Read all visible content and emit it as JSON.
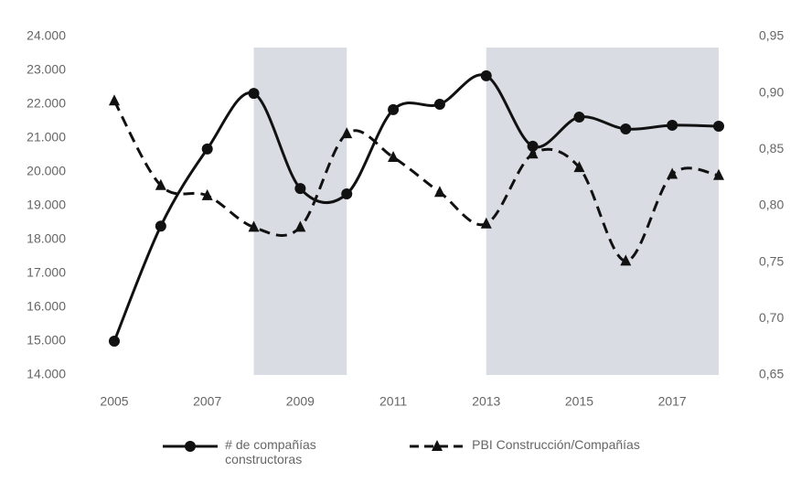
{
  "chart_data": {
    "type": "line",
    "x": [
      2005,
      2006,
      2007,
      2008,
      2009,
      2010,
      2011,
      2012,
      2013,
      2014,
      2015,
      2016,
      2017,
      2018
    ],
    "xlim": [
      2005,
      2018
    ],
    "xticks": [
      2005,
      2007,
      2009,
      2011,
      2013,
      2015,
      2017
    ],
    "ylim": [
      14000,
      24000
    ],
    "yticks": [
      {
        "value": 14000,
        "label": "14.000"
      },
      {
        "value": 15000,
        "label": "15.000"
      },
      {
        "value": 16000,
        "label": "16.000"
      },
      {
        "value": 17000,
        "label": "17.000"
      },
      {
        "value": 18000,
        "label": "18.000"
      },
      {
        "value": 19000,
        "label": "19.000"
      },
      {
        "value": 20000,
        "label": "20.000"
      },
      {
        "value": 21000,
        "label": "21.000"
      },
      {
        "value": 22000,
        "label": "22.000"
      },
      {
        "value": 23000,
        "label": "23.000"
      },
      {
        "value": 24000,
        "label": "24.000"
      }
    ],
    "y2lim": [
      0.65,
      0.95
    ],
    "y2ticks": [
      {
        "value": 0.65,
        "label": "0,65"
      },
      {
        "value": 0.7,
        "label": "0,70"
      },
      {
        "value": 0.75,
        "label": "0,75"
      },
      {
        "value": 0.8,
        "label": "0,80"
      },
      {
        "value": 0.85,
        "label": "0,85"
      },
      {
        "value": 0.9,
        "label": "0,90"
      },
      {
        "value": 0.95,
        "label": "0,95"
      }
    ],
    "shaded_regions": [
      [
        2008,
        2010
      ],
      [
        2013,
        2018
      ]
    ],
    "shade_color": "#d9dde3",
    "legend": "bottom",
    "series": [
      {
        "name": "# de compañías constructoras",
        "color": "#111111",
        "style": "solid",
        "marker": "circle",
        "values": [
          15000,
          18400,
          20680,
          22320,
          19510,
          19350,
          21840,
          22000,
          22840,
          20760,
          21620,
          21270,
          21380,
          21350
        ]
      },
      {
        "name": "PBI Construcción/Compañías",
        "color": "#111111",
        "style": "dashed",
        "marker": "triangle",
        "axis": "y2",
        "values": [
          0.893,
          0.818,
          0.809,
          0.781,
          0.781,
          0.864,
          0.843,
          0.812,
          0.784,
          0.846,
          0.834,
          0.751,
          0.828,
          0.827
        ]
      }
    ]
  }
}
